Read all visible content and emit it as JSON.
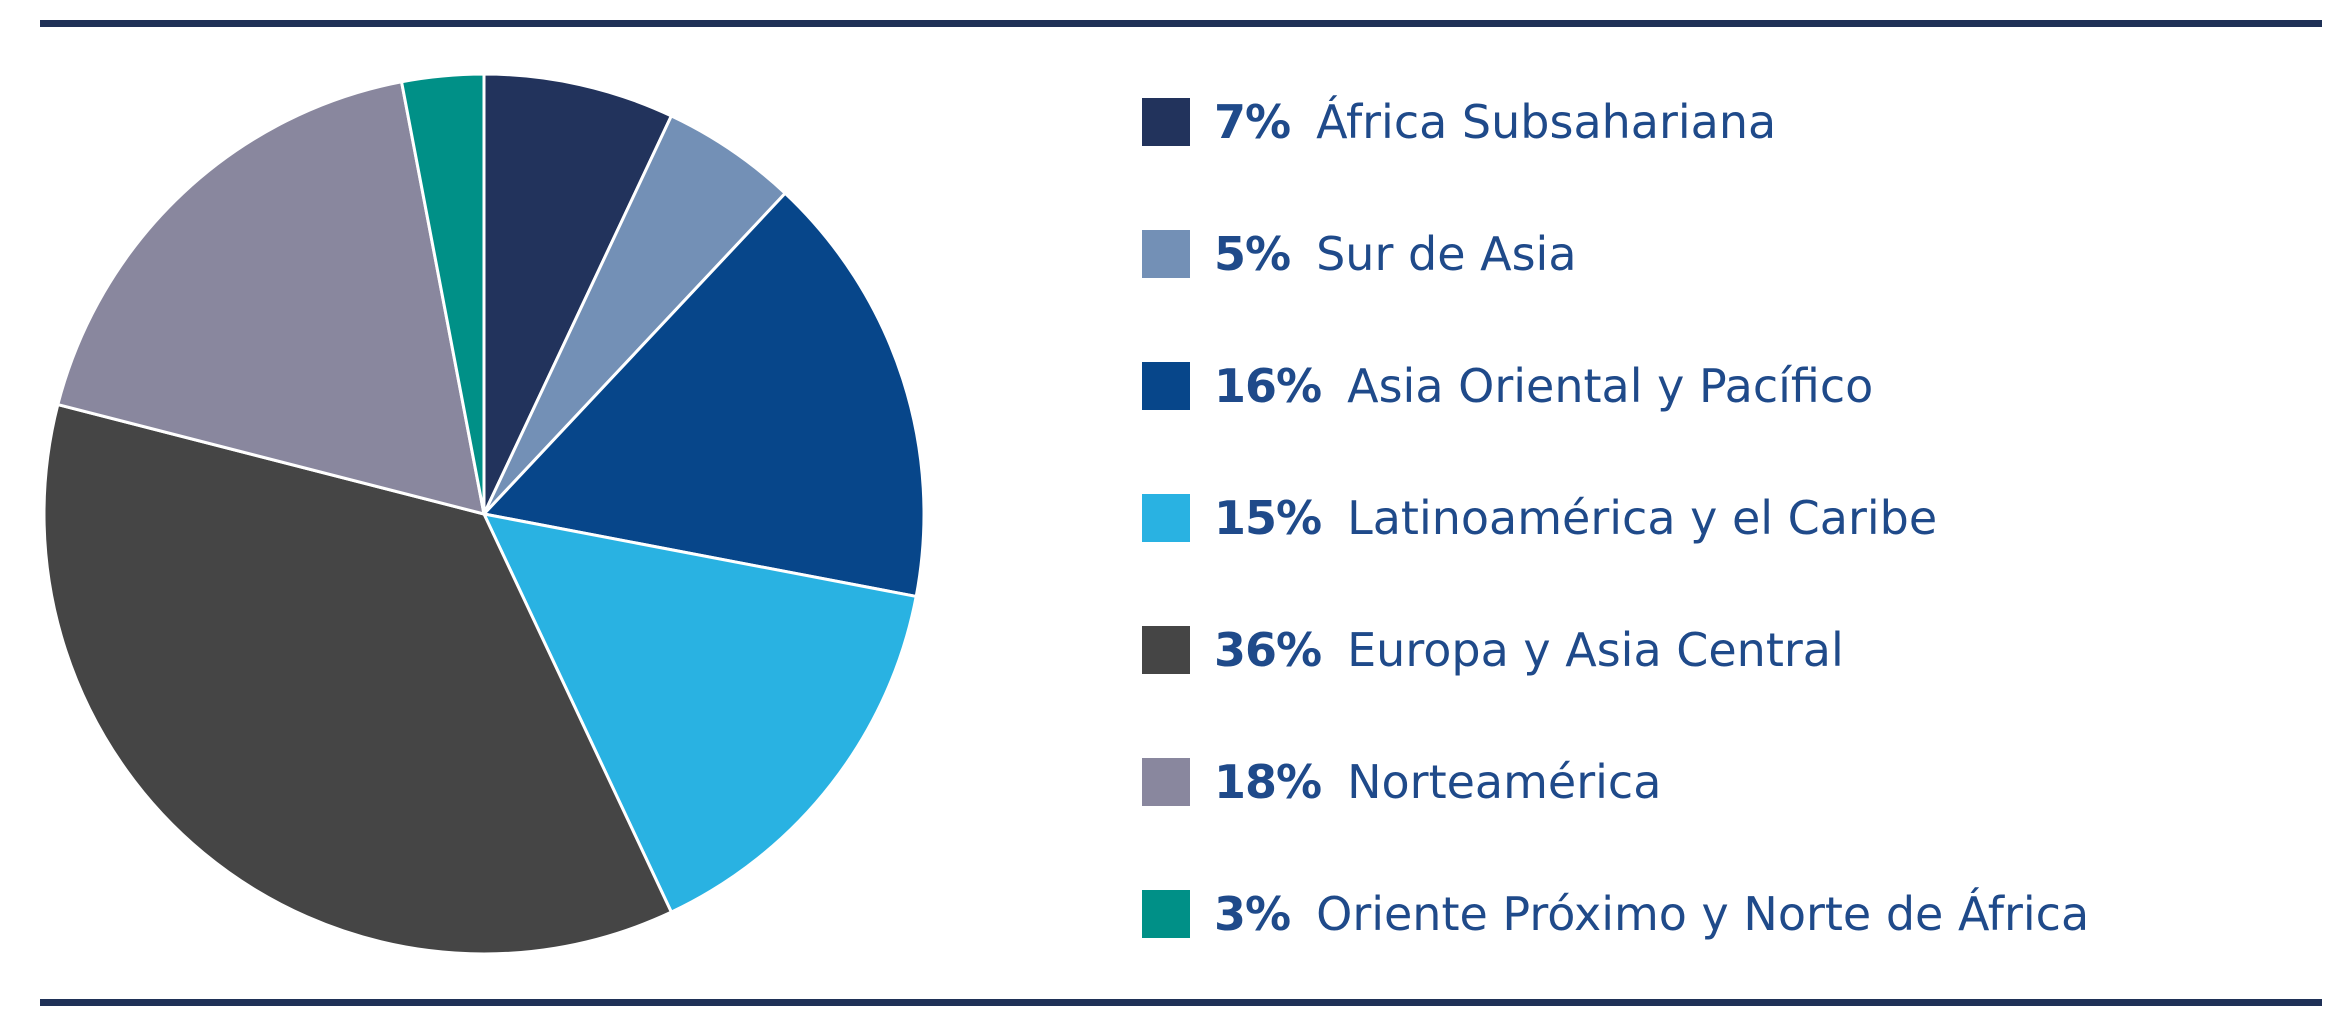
{
  "chart_data": {
    "type": "pie",
    "title": "",
    "slices": [
      {
        "pct_label": "7%",
        "label": "África Subsahariana",
        "value": 7,
        "color": "#22335c"
      },
      {
        "pct_label": "5%",
        "label": "Sur de Asia",
        "value": 5,
        "color": "#7390b6"
      },
      {
        "pct_label": "16%",
        "label": "Asia Oriental y Pacífico",
        "value": 16,
        "color": "#07468a"
      },
      {
        "pct_label": "15%",
        "label": "Latinoamérica y el Caribe",
        "value": 15,
        "color": "#29b2e2"
      },
      {
        "pct_label": "36%",
        "label": "Europa y Asia Central",
        "value": 36,
        "color": "#454545"
      },
      {
        "pct_label": "18%",
        "label": "Norteamérica",
        "value": 18,
        "color": "#89879e"
      },
      {
        "pct_label": "3%",
        "label": "Oriente Próximo y Norte de África",
        "value": 3,
        "color": "#009087"
      }
    ],
    "start_angle": "12 o'clock",
    "direction": "clockwise",
    "legend_position": "right",
    "grid": false
  }
}
